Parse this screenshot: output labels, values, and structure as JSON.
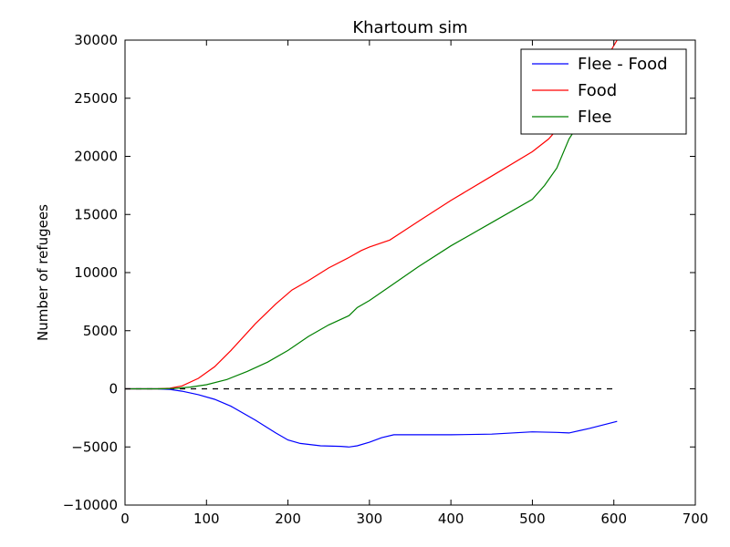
{
  "chart_data": {
    "type": "line",
    "title": "Khartoum sim",
    "xlabel": "",
    "ylabel": "Number of refugees",
    "xlim": [
      0,
      700
    ],
    "ylim": [
      -10000,
      30000
    ],
    "xticks": [
      0,
      100,
      200,
      300,
      400,
      500,
      600,
      700
    ],
    "yticks": [
      -10000,
      -5000,
      0,
      5000,
      10000,
      15000,
      20000,
      25000,
      30000
    ],
    "xtick_labels": [
      "0",
      "100",
      "200",
      "300",
      "400",
      "500",
      "600",
      "700"
    ],
    "ytick_labels": [
      "−10000",
      "−5000",
      "0",
      "5000",
      "10000",
      "15000",
      "20000",
      "25000",
      "30000"
    ],
    "grid": false,
    "legend": "top-right",
    "reference_line": {
      "y": 0,
      "x_range": [
        0,
        604
      ],
      "style": "dashed",
      "color": "#000000"
    },
    "series": [
      {
        "name": "Flee - Food",
        "color": "#0000ff",
        "x": [
          0,
          40,
          55,
          70,
          90,
          110,
          130,
          160,
          185,
          200,
          215,
          240,
          265,
          275,
          285,
          300,
          315,
          330,
          360,
          400,
          450,
          500,
          530,
          545,
          570,
          604
        ],
        "y": [
          0,
          0,
          -50,
          -200,
          -500,
          -900,
          -1500,
          -2700,
          -3800,
          -4400,
          -4700,
          -4900,
          -4950,
          -5000,
          -4900,
          -4600,
          -4200,
          -3950,
          -3950,
          -3950,
          -3900,
          -3700,
          -3750,
          -3800,
          -3400,
          -2800
        ]
      },
      {
        "name": "Food",
        "color": "#ff0000",
        "x": [
          0,
          40,
          55,
          70,
          90,
          110,
          130,
          160,
          185,
          205,
          225,
          250,
          275,
          290,
          300,
          325,
          360,
          400,
          450,
          500,
          520,
          545,
          570,
          604
        ],
        "y": [
          0,
          0,
          50,
          250,
          900,
          1900,
          3300,
          5600,
          7300,
          8500,
          9300,
          10400,
          11300,
          11900,
          12200,
          12800,
          14400,
          16200,
          18300,
          20400,
          21500,
          23500,
          26000,
          30000
        ]
      },
      {
        "name": "Flee",
        "color": "#008000",
        "x": [
          0,
          40,
          60,
          80,
          100,
          125,
          150,
          175,
          200,
          225,
          250,
          275,
          285,
          300,
          325,
          360,
          400,
          450,
          500,
          515,
          530,
          545,
          570,
          604
        ],
        "y": [
          0,
          0,
          30,
          150,
          350,
          800,
          1500,
          2300,
          3300,
          4500,
          5500,
          6300,
          7000,
          7600,
          8800,
          10500,
          12300,
          14300,
          16300,
          17500,
          19000,
          21500,
          24200,
          27200
        ]
      }
    ]
  }
}
